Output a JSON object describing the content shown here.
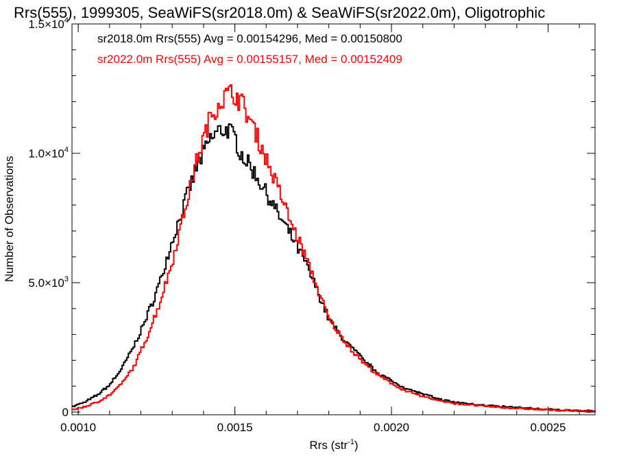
{
  "chart_data": {
    "type": "line",
    "title": "Rrs(555), 1999305, SeaWiFS(sr2018.0m) & SeaWiFS(sr2022.0m), Oligotrophic",
    "xlabel": "Rrs (str",
    "xlabel_superscript": "-1",
    "xlabel_suffix": ")",
    "ylabel": "Number of Observations",
    "xlim": [
      0.00098,
      0.00265
    ],
    "ylim": [
      0,
      15000
    ],
    "x_ticks": [
      {
        "value": 0.001,
        "label": "0.0010"
      },
      {
        "value": 0.0015,
        "label": "0.0015"
      },
      {
        "value": 0.002,
        "label": "0.0020"
      },
      {
        "value": 0.0025,
        "label": "0.0025"
      }
    ],
    "y_ticks": [
      {
        "value": 0,
        "mantissa": "0",
        "exponent": ""
      },
      {
        "value": 5000,
        "mantissa": "5.0×10",
        "exponent": "3"
      },
      {
        "value": 10000,
        "mantissa": "1.0×10",
        "exponent": "4"
      },
      {
        "value": 15000,
        "mantissa": "1.5×10",
        "exponent": "4"
      }
    ],
    "series": [
      {
        "name": "sr2018.0m",
        "color": "#000000",
        "legend": "sr2018.0m Rrs(555) Avg = 0.00154296, Med = 0.00150800",
        "x": [
          0.00098,
          0.00102,
          0.00106,
          0.0011,
          0.00114,
          0.00118,
          0.00122,
          0.00126,
          0.0013,
          0.00134,
          0.00138,
          0.00142,
          0.00145,
          0.00148,
          0.0015,
          0.00152,
          0.00156,
          0.0016,
          0.00164,
          0.00168,
          0.00172,
          0.00176,
          0.0018,
          0.00184,
          0.00188,
          0.00192,
          0.00196,
          0.002,
          0.00205,
          0.0021,
          0.00215,
          0.0022,
          0.0023,
          0.0024,
          0.0025,
          0.00265
        ],
        "y": [
          200,
          380,
          650,
          1050,
          1700,
          2600,
          3700,
          5000,
          6600,
          8100,
          9500,
          10500,
          10900,
          10900,
          10600,
          10000,
          9300,
          8500,
          7600,
          6800,
          5900,
          4800,
          3600,
          2900,
          2400,
          1900,
          1500,
          1200,
          900,
          700,
          500,
          380,
          260,
          170,
          100,
          30
        ]
      },
      {
        "name": "sr2022.0m",
        "color": "#ff0000",
        "legend": "sr2022.0m Rrs(555) Avg = 0.00155157, Med = 0.00152409",
        "x": [
          0.00098,
          0.00102,
          0.00106,
          0.0011,
          0.00114,
          0.00118,
          0.00122,
          0.00126,
          0.0013,
          0.00134,
          0.00138,
          0.00142,
          0.00145,
          0.00148,
          0.0015,
          0.00152,
          0.00156,
          0.0016,
          0.00164,
          0.00168,
          0.00172,
          0.00176,
          0.0018,
          0.00184,
          0.00188,
          0.00192,
          0.00196,
          0.002,
          0.00205,
          0.0021,
          0.00215,
          0.0022,
          0.0023,
          0.0024,
          0.0025,
          0.00265
        ],
        "y": [
          100,
          200,
          380,
          650,
          1100,
          1800,
          2900,
          4200,
          5800,
          7800,
          9800,
          11300,
          12000,
          12300,
          12300,
          12000,
          11000,
          9800,
          8600,
          7300,
          6200,
          4900,
          3600,
          2900,
          2300,
          1800,
          1400,
          1100,
          800,
          600,
          450,
          330,
          220,
          140,
          80,
          20
        ]
      }
    ],
    "grid": false,
    "legend_position": "top-left"
  }
}
